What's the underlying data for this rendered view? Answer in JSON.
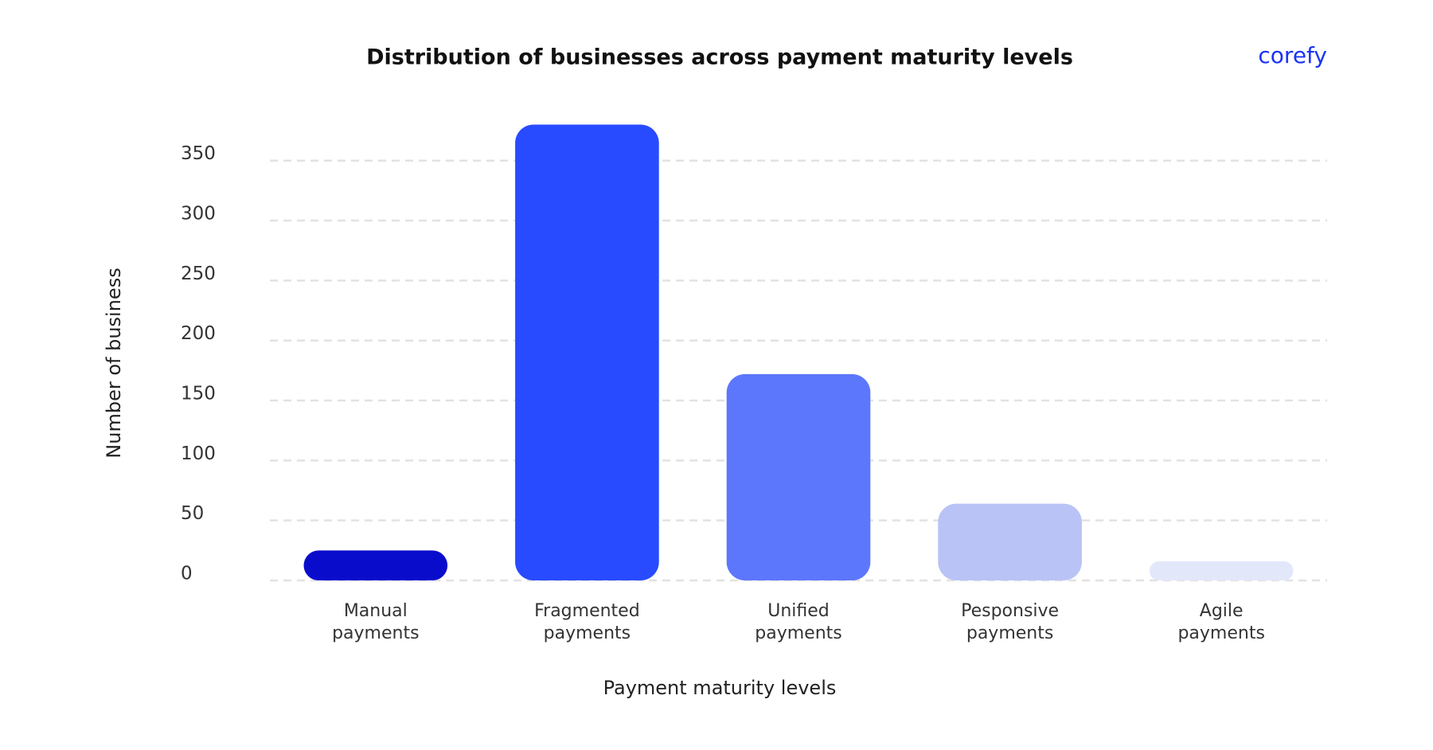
{
  "chart_data": {
    "type": "bar",
    "title": "Distribution of businesses across payment maturity levels",
    "brand": "corefy",
    "x_label": "Payment maturity levels",
    "y_label": "Number of business",
    "categories": [
      "Manual payments",
      "Fragmented payments",
      "Unified payments",
      "Pesponsive payments",
      "Agile payments"
    ],
    "values": [
      25,
      380,
      172,
      64,
      16
    ],
    "colors": [
      "#0a0ccc",
      "#284bff",
      "#5d77fc",
      "#b9c3f6",
      "#e3e7fa"
    ],
    "ylim": [
      0,
      385
    ],
    "yticks": [
      0,
      50,
      100,
      150,
      200,
      250,
      300,
      350
    ],
    "grid": true
  }
}
